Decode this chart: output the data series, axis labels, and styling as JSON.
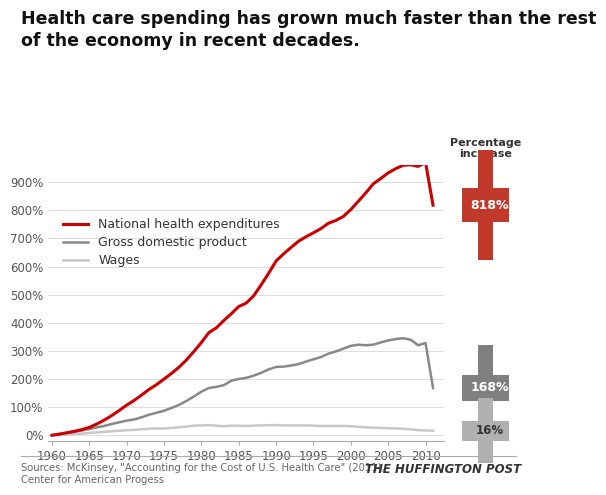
{
  "title": "Health care spending has grown much faster than the rest\nof the economy in recent decades.",
  "title_fontsize": 12.5,
  "years": [
    1960,
    1961,
    1962,
    1963,
    1964,
    1965,
    1966,
    1967,
    1968,
    1969,
    1970,
    1971,
    1972,
    1973,
    1974,
    1975,
    1976,
    1977,
    1978,
    1979,
    1980,
    1981,
    1982,
    1983,
    1984,
    1985,
    1986,
    1987,
    1988,
    1989,
    1990,
    1991,
    1992,
    1993,
    1994,
    1995,
    1996,
    1997,
    1998,
    1999,
    2000,
    2001,
    2002,
    2003,
    2004,
    2005,
    2006,
    2007,
    2008,
    2009,
    2010,
    2011
  ],
  "health": [
    0,
    4,
    9,
    14,
    20,
    28,
    40,
    54,
    70,
    88,
    107,
    124,
    143,
    163,
    180,
    200,
    220,
    242,
    268,
    298,
    330,
    365,
    382,
    408,
    432,
    458,
    470,
    496,
    535,
    576,
    620,
    645,
    668,
    690,
    706,
    720,
    735,
    754,
    764,
    778,
    803,
    832,
    862,
    894,
    913,
    933,
    948,
    960,
    962,
    956,
    970,
    818
  ],
  "gdp": [
    0,
    4,
    8,
    12,
    17,
    22,
    28,
    33,
    40,
    46,
    52,
    56,
    64,
    73,
    80,
    87,
    97,
    108,
    122,
    138,
    155,
    168,
    172,
    178,
    194,
    200,
    204,
    212,
    222,
    234,
    243,
    244,
    248,
    253,
    262,
    270,
    278,
    290,
    298,
    308,
    318,
    322,
    320,
    322,
    330,
    337,
    342,
    345,
    340,
    320,
    328,
    168
  ],
  "wages": [
    0,
    1,
    3,
    4,
    6,
    8,
    10,
    12,
    14,
    16,
    18,
    19,
    21,
    23,
    24,
    24,
    26,
    28,
    31,
    34,
    35,
    36,
    34,
    32,
    34,
    34,
    33,
    34,
    35,
    36,
    36,
    35,
    35,
    35,
    35,
    34,
    33,
    33,
    33,
    33,
    32,
    30,
    28,
    27,
    26,
    25,
    24,
    23,
    21,
    18,
    17,
    16
  ],
  "color_health": "#cc0000",
  "color_gdp": "#888888",
  "color_wages": "#c8c8c8",
  "source_text": "Sources: McKinsey, \"Accounting for the Cost of U.S. Health Care\" (2011),\nCenter for American Progess",
  "huffington_text": "THE HUFFINGTON POST",
  "annotation_818": "818%",
  "annotation_168": "168%",
  "annotation_16": "16%",
  "pct_increase_label": "Percentage\nincrease",
  "legend_health": "National health expenditures",
  "legend_gdp": "Gross domestic product",
  "legend_wages": "Wages",
  "bg_color": "#ffffff",
  "ylim": [
    -20,
    960
  ],
  "xlim": [
    1959.5,
    2012.5
  ],
  "color_plus_red": "#c0392b",
  "color_plus_gray": "#7f7f7f",
  "color_plus_lgray": "#b0b0b0"
}
